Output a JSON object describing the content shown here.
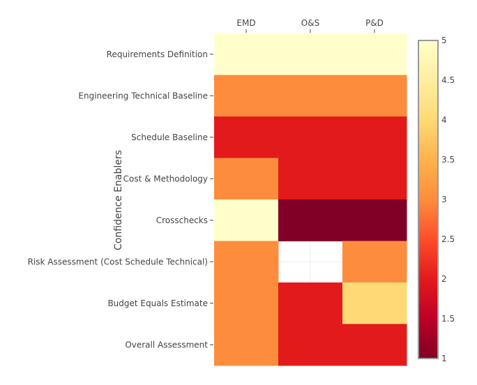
{
  "chart_data": {
    "type": "heatmap",
    "title": "",
    "xlabel": "",
    "ylabel": "Confidence Enablers",
    "x_categories": [
      "EMD",
      "O&S",
      "P&D"
    ],
    "y_categories": [
      "Requirements Definition",
      "Engineering Technical Baseline",
      "Schedule Baseline",
      "Cost & Methodology",
      "Crosschecks",
      "Risk Assessment (Cost Schedule Technical)",
      "Budget Equals Estimate",
      "Overall Assessment"
    ],
    "z": [
      [
        5,
        5,
        5
      ],
      [
        3,
        3,
        3
      ],
      [
        2,
        2,
        2
      ],
      [
        3,
        2,
        2
      ],
      [
        5,
        1,
        1
      ],
      [
        3,
        null,
        3
      ],
      [
        3,
        2,
        4
      ],
      [
        3,
        2,
        2
      ]
    ],
    "zrange": [
      1,
      5
    ],
    "colorbar_ticks": [
      "1",
      "1.5",
      "2",
      "2.5",
      "3",
      "3.5",
      "4",
      "4.5",
      "5"
    ],
    "colorscale": [
      [
        0,
        "#800026"
      ],
      [
        0.125,
        "#bd0026"
      ],
      [
        0.25,
        "#e31a1c"
      ],
      [
        0.375,
        "#fc4e2a"
      ],
      [
        0.5,
        "#fd8d3c"
      ],
      [
        0.625,
        "#feb24c"
      ],
      [
        0.75,
        "#fed976"
      ],
      [
        0.875,
        "#ffeda0"
      ],
      [
        1,
        "#ffffcc"
      ]
    ],
    "xaxis_side": "top",
    "legend": "colorbar-right"
  }
}
